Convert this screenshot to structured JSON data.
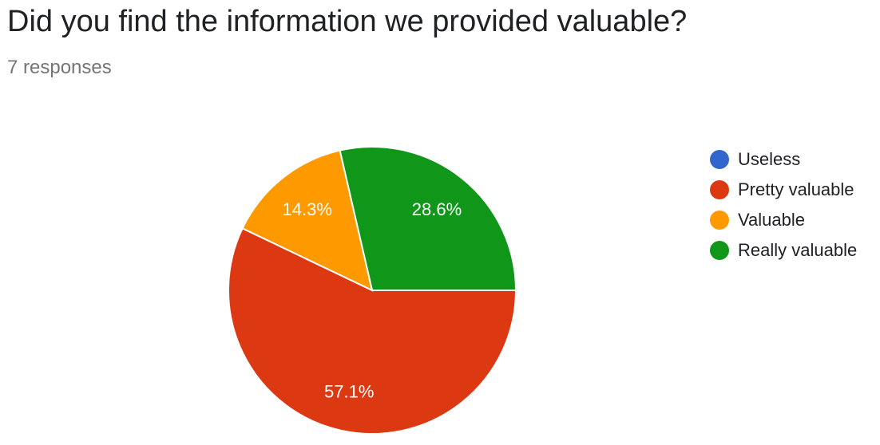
{
  "header": {
    "question": "Did you find the information we provided valuable?",
    "responses": "7 responses"
  },
  "chart_data": {
    "type": "pie",
    "title": "Did you find the information we provided valuable?",
    "categories": [
      "Useless",
      "Pretty valuable",
      "Valuable",
      "Really valuable"
    ],
    "values": [
      0,
      57.1,
      14.3,
      28.6
    ],
    "labels": [
      "",
      "57.1%",
      "14.3%",
      "28.6%"
    ],
    "colors": [
      "#3366cc",
      "#dc3912",
      "#ff9900",
      "#109618"
    ],
    "legend_position": "right"
  }
}
